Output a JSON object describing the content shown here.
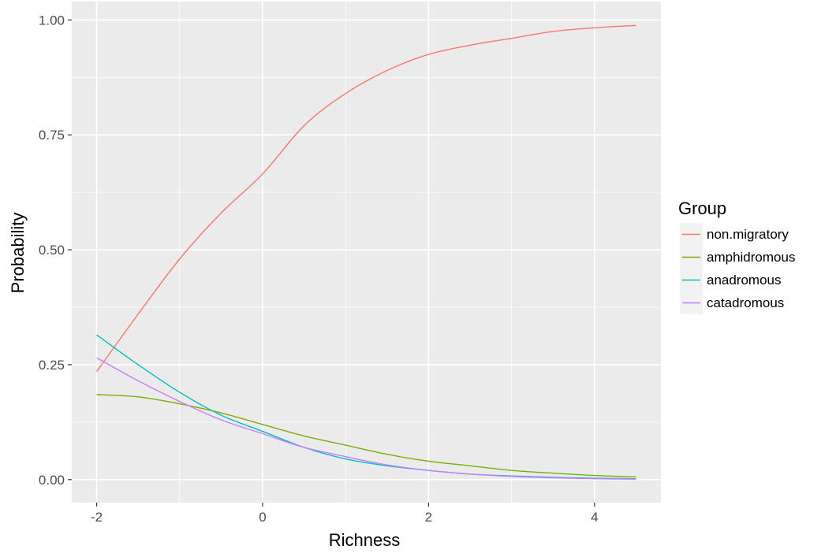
{
  "chart_data": {
    "type": "line",
    "xlabel": "Richness",
    "ylabel": "Probability",
    "xlim": [
      -2.3,
      4.8
    ],
    "ylim": [
      -0.05,
      1.04
    ],
    "x_ticks": [
      -2,
      0,
      2,
      4
    ],
    "x_tick_labels": [
      "-2",
      "0",
      "2",
      "4"
    ],
    "y_ticks": [
      0,
      0.25,
      0.5,
      0.75,
      1
    ],
    "y_tick_labels": [
      "0.00",
      "0.25",
      "0.50",
      "0.75",
      "1.00"
    ],
    "grid": true,
    "background": "#ebebeb",
    "legend": {
      "title": "Group",
      "position": "right"
    },
    "x": [
      -2.0,
      -1.5,
      -1.0,
      -0.5,
      0.0,
      0.5,
      1.0,
      1.5,
      2.0,
      2.5,
      3.0,
      3.5,
      4.0,
      4.5
    ],
    "series": [
      {
        "name": "non.migratory",
        "color": "#f8766d",
        "values": [
          0.235,
          0.36,
          0.48,
          0.58,
          0.665,
          0.77,
          0.84,
          0.89,
          0.925,
          0.945,
          0.96,
          0.975,
          0.983,
          0.988
        ]
      },
      {
        "name": "amphidromous",
        "color": "#7cae00",
        "values": [
          0.185,
          0.18,
          0.165,
          0.145,
          0.12,
          0.095,
          0.075,
          0.055,
          0.04,
          0.03,
          0.02,
          0.014,
          0.009,
          0.006
        ]
      },
      {
        "name": "anadromous",
        "color": "#00bfc4",
        "values": [
          0.315,
          0.25,
          0.19,
          0.14,
          0.105,
          0.07,
          0.045,
          0.03,
          0.02,
          0.012,
          0.008,
          0.005,
          0.003,
          0.002
        ]
      },
      {
        "name": "catadromous",
        "color": "#c77cff",
        "values": [
          0.265,
          0.215,
          0.17,
          0.13,
          0.1,
          0.07,
          0.05,
          0.032,
          0.02,
          0.012,
          0.007,
          0.004,
          0.002,
          0.001
        ]
      }
    ]
  }
}
